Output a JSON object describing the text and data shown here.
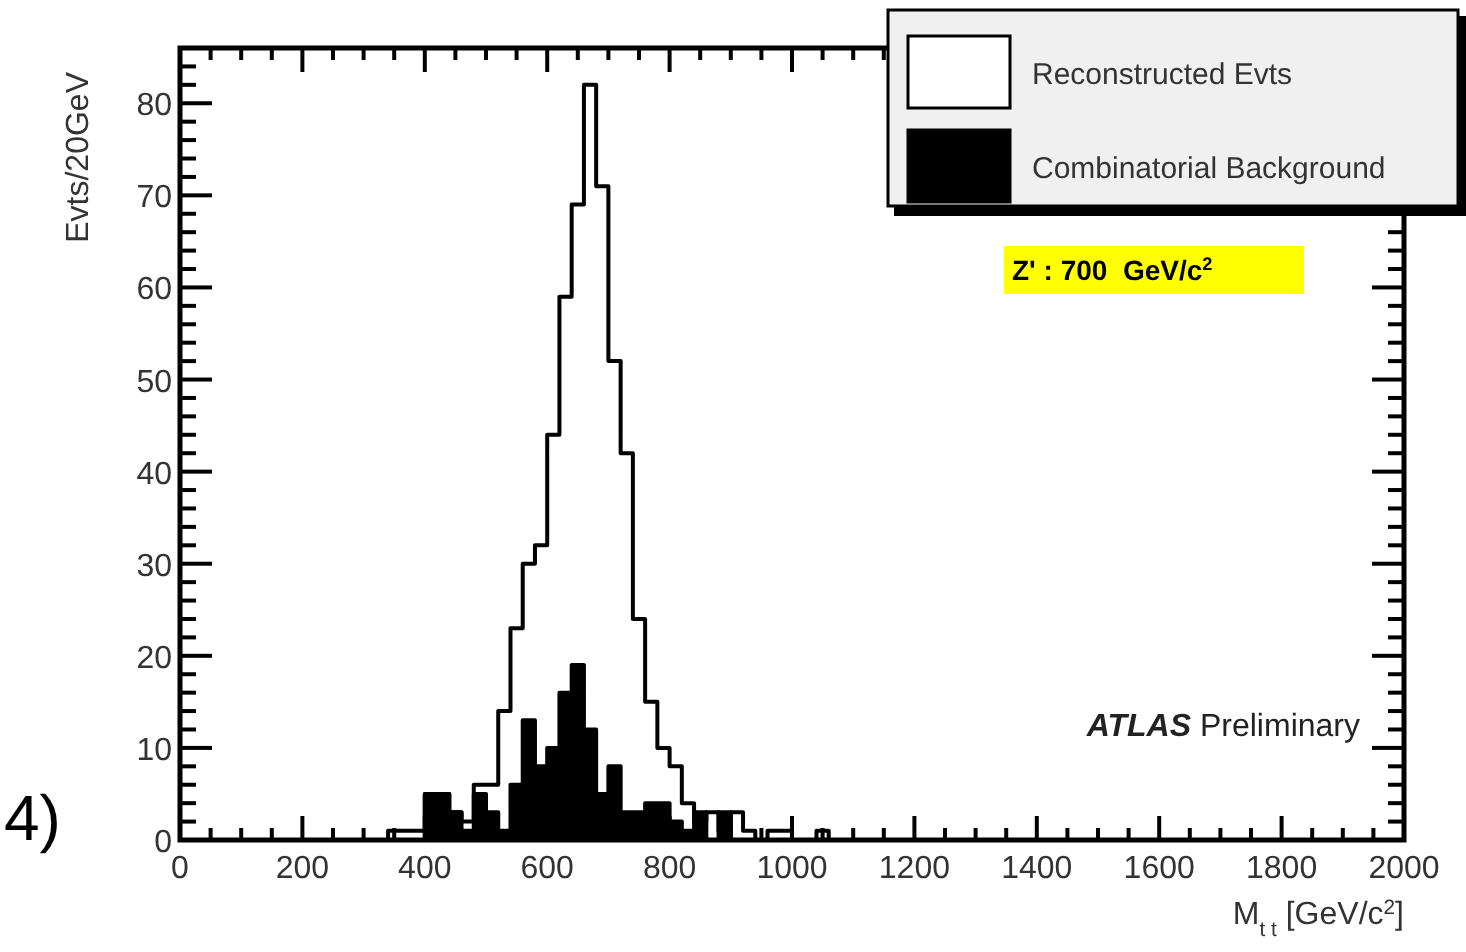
{
  "chart_data": {
    "type": "histogram",
    "xlabel": "M$_{t t}$ [GeV/c$^{2}$]",
    "ylabel": "Evts/20GeV",
    "annotations": [
      "Z' : 700  GeV/c$^{2}$",
      "ATLAS Preliminary",
      "4)"
    ],
    "bins": [
      0,
      20,
      40,
      60,
      80,
      100,
      120,
      140,
      160,
      180,
      200,
      220,
      240,
      260,
      280,
      300,
      320,
      340,
      360,
      380,
      400,
      420,
      440,
      460,
      480,
      500,
      520,
      540,
      560,
      580,
      600,
      620,
      640,
      660,
      680,
      700,
      720,
      740,
      760,
      780,
      800,
      820,
      840,
      860,
      880,
      900,
      920,
      940,
      960,
      980,
      1000,
      1020,
      1040,
      1060,
      1080,
      1100,
      1120,
      1140,
      1160,
      1180,
      1200,
      1220,
      1240,
      1260,
      1280,
      1300,
      1320,
      1340,
      1360,
      1380,
      1400,
      1420,
      1440,
      1460,
      1480,
      1500,
      1520,
      1540,
      1560,
      1580,
      1600,
      1620,
      1640,
      1660,
      1680,
      1700,
      1720,
      1740,
      1760,
      1780,
      1800,
      1820,
      1840,
      1860,
      1880,
      1900,
      1920,
      1940,
      1960,
      1980,
      2000
    ],
    "series": [
      {
        "name": "Reconstructed Evts",
        "color": "#ffffff",
        "values": [
          0,
          0,
          0,
          0,
          0,
          0,
          0,
          0,
          0,
          0,
          0,
          0,
          0,
          0,
          0,
          0,
          0,
          1,
          1,
          1,
          5,
          5,
          3,
          2,
          6,
          6,
          14,
          23,
          30,
          32,
          44,
          59,
          69,
          82,
          71,
          52,
          42,
          24,
          15,
          10,
          8,
          4,
          2,
          3,
          1,
          3,
          1,
          0,
          1,
          1,
          0,
          0,
          1,
          0,
          0,
          0,
          0,
          0,
          0,
          0,
          0,
          0,
          0,
          0,
          0,
          0,
          0,
          0,
          0,
          0,
          0,
          0,
          0,
          0,
          0,
          0,
          0,
          0,
          0,
          0,
          0,
          0,
          0,
          0,
          0,
          0,
          0,
          0,
          0,
          0,
          0,
          0,
          0,
          0,
          0,
          0,
          0,
          0,
          0,
          0
        ]
      },
      {
        "name": "Combinatorial Background",
        "color": "#000000",
        "values": [
          0,
          0,
          0,
          0,
          0,
          0,
          0,
          0,
          0,
          0,
          0,
          0,
          0,
          0,
          0,
          0,
          0,
          0,
          0,
          0,
          5,
          5,
          3,
          1,
          5,
          3,
          1,
          6,
          13,
          8,
          10,
          16,
          19,
          12,
          5,
          8,
          3,
          3,
          4,
          4,
          2,
          1,
          3,
          0,
          3,
          0,
          0,
          0,
          0,
          0,
          0,
          0,
          0,
          0,
          0,
          0,
          0,
          0,
          0,
          0,
          0,
          0,
          0,
          0,
          0,
          0,
          0,
          0,
          0,
          0,
          0,
          0,
          0,
          0,
          0,
          0,
          0,
          0,
          0,
          0,
          0,
          0,
          0,
          0,
          0,
          0,
          0,
          0,
          0,
          0,
          0,
          0,
          0,
          0,
          0,
          0,
          0,
          0,
          0,
          0
        ]
      }
    ],
    "xlim": [
      0,
      2000
    ],
    "xticks": [
      0,
      {
        "value": 50,
        "label": null
      },
      {
        "value": 100,
        "label": null
      },
      {
        "value": 150,
        "label": null
      },
      200,
      {
        "value": 250,
        "label": null
      },
      {
        "value": 300,
        "label": null
      },
      {
        "value": 350,
        "label": null
      },
      400,
      {
        "value": 450,
        "label": null
      },
      {
        "value": 500,
        "label": null
      },
      {
        "value": 550,
        "label": null
      },
      600,
      {
        "value": 650,
        "label": null
      },
      {
        "value": 700,
        "label": null
      },
      {
        "value": 750,
        "label": null
      },
      800,
      {
        "value": 850,
        "label": null
      },
      {
        "value": 900,
        "label": null
      },
      {
        "value": 950,
        "label": null
      },
      1000,
      {
        "value": 1050,
        "label": null
      },
      {
        "value": 1100,
        "label": null
      },
      {
        "value": 1150,
        "label": null
      },
      1200,
      {
        "value": 1250,
        "label": null
      },
      {
        "value": 1300,
        "label": null
      },
      {
        "value": 1350,
        "label": null
      },
      1400,
      {
        "value": 1450,
        "label": null
      },
      {
        "value": 1500,
        "label": null
      },
      {
        "value": 1550,
        "label": null
      },
      1600,
      {
        "value": 1650,
        "label": null
      },
      {
        "value": 1700,
        "label": null
      },
      {
        "value": 1750,
        "label": null
      },
      1800,
      {
        "value": 1850,
        "label": null
      },
      {
        "value": 1900,
        "label": null
      },
      {
        "value": 1950,
        "label": null
      },
      2000
    ],
    "ylim": [
      0,
      86
    ],
    "yticks": [
      0,
      {
        "value": 2,
        "label": null
      },
      {
        "value": 4,
        "label": null
      },
      {
        "value": 6,
        "label": null
      },
      {
        "value": 8,
        "label": null
      },
      10,
      {
        "value": 12,
        "label": null
      },
      {
        "value": 14,
        "label": null
      },
      {
        "value": 16,
        "label": null
      },
      {
        "value": 18,
        "label": null
      },
      20,
      {
        "value": 22,
        "label": null
      },
      {
        "value": 24,
        "label": null
      },
      {
        "value": 26,
        "label": null
      },
      {
        "value": 28,
        "label": null
      },
      30,
      {
        "value": 32,
        "label": null
      },
      {
        "value": 34,
        "label": null
      },
      {
        "value": 36,
        "label": null
      },
      {
        "value": 38,
        "label": null
      },
      40,
      {
        "value": 42,
        "label": null
      },
      {
        "value": 44,
        "label": null
      },
      {
        "value": 46,
        "label": null
      },
      {
        "value": 48,
        "label": null
      },
      50,
      {
        "value": 52,
        "label": null
      },
      {
        "value": 54,
        "label": null
      },
      {
        "value": 56,
        "label": null
      },
      {
        "value": 58,
        "label": null
      },
      60,
      {
        "value": 62,
        "label": null
      },
      {
        "value": 64,
        "label": null
      },
      {
        "value": 66,
        "label": null
      },
      {
        "value": 68,
        "label": null
      },
      70,
      {
        "value": 72,
        "label": null
      },
      {
        "value": 74,
        "label": null
      },
      {
        "value": 76,
        "label": null
      },
      {
        "value": 78,
        "label": null
      },
      80,
      {
        "value": 82,
        "label": null
      },
      {
        "value": 84,
        "label": null
      }
    ],
    "legend": "top right"
  }
}
